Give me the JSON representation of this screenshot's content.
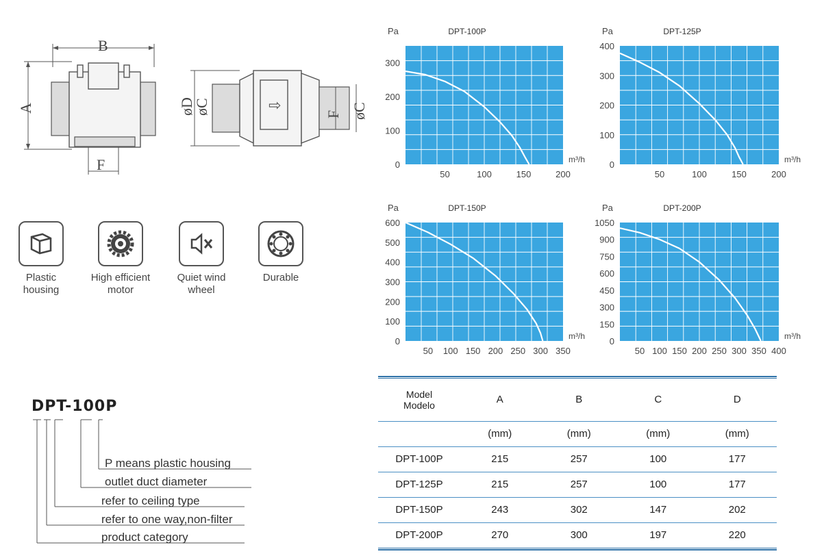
{
  "drawing": {
    "dim_b": "B",
    "dim_a": "A",
    "dim_f_left": "F",
    "dim_d": "øD",
    "dim_c": "øC",
    "dim_f_right": "F",
    "dim_c_right": "øC"
  },
  "features": [
    {
      "label": "Plastic\nhousing",
      "icon": "box-icon"
    },
    {
      "label": "High efficient\nmotor",
      "icon": "gear-icon"
    },
    {
      "label": "Quiet wind\nwheel",
      "icon": "speaker-mute-icon"
    },
    {
      "label": "Durable",
      "icon": "ring-icon"
    }
  ],
  "model_code": {
    "title": "DPT-100P",
    "legend": [
      "P means plastic housing",
      "outlet duct diameter",
      "refer to ceiling type",
      "refer to one way,non-filter",
      "product category"
    ]
  },
  "colors": {
    "chart_bg": "#3aa6e0",
    "grid": "#ffffff",
    "curve": "#ffffff",
    "table_rule": "#2f72a8"
  },
  "chart_data": [
    {
      "type": "line",
      "title": "DPT-100P",
      "ylabel": "Pa",
      "xlabel": "m³/h",
      "xlim": [
        0,
        200
      ],
      "ylim": [
        0,
        350
      ],
      "xticks": [
        50,
        100,
        150,
        200
      ],
      "yticks": [
        0,
        100,
        200,
        300
      ],
      "series": [
        {
          "x": [
            0,
            25,
            50,
            75,
            100,
            120,
            135,
            145,
            152,
            157
          ],
          "y": [
            275,
            265,
            245,
            215,
            170,
            125,
            85,
            50,
            20,
            0
          ]
        }
      ]
    },
    {
      "type": "line",
      "title": "DPT-125P",
      "ylabel": "Pa",
      "xlabel": "m³/h",
      "xlim": [
        0,
        200
      ],
      "ylim": [
        0,
        400
      ],
      "xticks": [
        50,
        100,
        150,
        200
      ],
      "yticks": [
        0,
        100,
        200,
        300,
        400
      ],
      "series": [
        {
          "x": [
            0,
            25,
            50,
            75,
            100,
            120,
            135,
            145,
            150,
            155
          ],
          "y": [
            375,
            345,
            310,
            265,
            205,
            150,
            100,
            55,
            25,
            0
          ]
        }
      ]
    },
    {
      "type": "line",
      "title": "DPT-150P",
      "ylabel": "Pa",
      "xlabel": "m³/h",
      "xlim": [
        0,
        350
      ],
      "ylim": [
        0,
        600
      ],
      "xticks": [
        50,
        100,
        150,
        200,
        250,
        300,
        350
      ],
      "yticks": [
        0,
        100,
        200,
        300,
        400,
        500,
        600
      ],
      "series": [
        {
          "x": [
            0,
            50,
            100,
            150,
            200,
            240,
            270,
            290,
            300,
            305
          ],
          "y": [
            600,
            550,
            490,
            420,
            330,
            240,
            160,
            90,
            40,
            0
          ]
        }
      ]
    },
    {
      "type": "line",
      "title": "DPT-200P",
      "ylabel": "Pa",
      "xlabel": "m³/h",
      "xlim": [
        0,
        400
      ],
      "ylim": [
        0,
        1050
      ],
      "xticks": [
        50,
        100,
        150,
        200,
        250,
        300,
        350,
        400
      ],
      "yticks": [
        0,
        150,
        300,
        450,
        600,
        750,
        900,
        1050
      ],
      "series": [
        {
          "x": [
            0,
            50,
            100,
            150,
            200,
            250,
            290,
            320,
            340,
            355
          ],
          "y": [
            1000,
            960,
            900,
            820,
            700,
            540,
            380,
            230,
            110,
            0
          ]
        }
      ]
    }
  ],
  "spec_table": {
    "header": [
      "Model\nModelo",
      "A",
      "B",
      "C",
      "D"
    ],
    "units": [
      "",
      "(mm)",
      "(mm)",
      "(mm)",
      "(mm)"
    ],
    "rows": [
      [
        "DPT-100P",
        "215",
        "257",
        "100",
        "177"
      ],
      [
        "DPT-125P",
        "215",
        "257",
        "100",
        "177"
      ],
      [
        "DPT-150P",
        "243",
        "302",
        "147",
        "202"
      ],
      [
        "DPT-200P",
        "270",
        "300",
        "197",
        "220"
      ]
    ]
  }
}
